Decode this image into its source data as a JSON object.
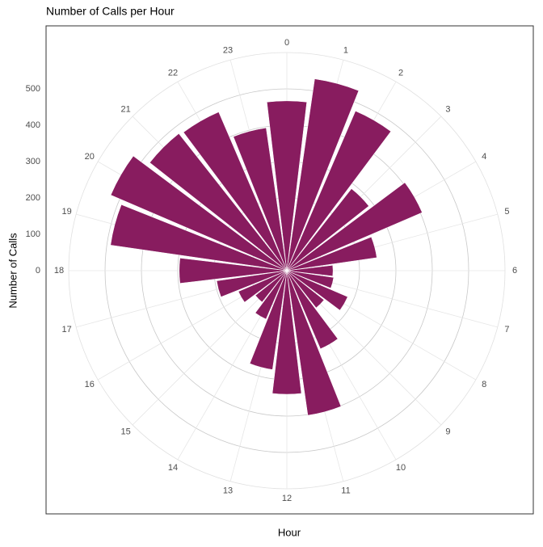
{
  "chart_data": {
    "type": "bar",
    "polar": true,
    "title": "Number of Calls per Hour",
    "x_label": "Hour",
    "y_label": "Number of Calls",
    "categories": [
      "0",
      "1",
      "2",
      "3",
      "4",
      "5",
      "6",
      "7",
      "8",
      "9",
      "10",
      "11",
      "12",
      "13",
      "14",
      "15",
      "16",
      "17",
      "18",
      "19",
      "20",
      "21",
      "22",
      "23"
    ],
    "values": [
      467,
      533,
      478,
      287,
      405,
      250,
      127,
      130,
      182,
      130,
      234,
      402,
      340,
      275,
      145,
      110,
      145,
      195,
      296,
      490,
      527,
      480,
      475,
      397
    ],
    "color": "#881c5f",
    "ylim": [
      0,
      600
    ],
    "yticks": [
      0,
      100,
      200,
      300,
      400,
      500
    ],
    "grid": true
  }
}
